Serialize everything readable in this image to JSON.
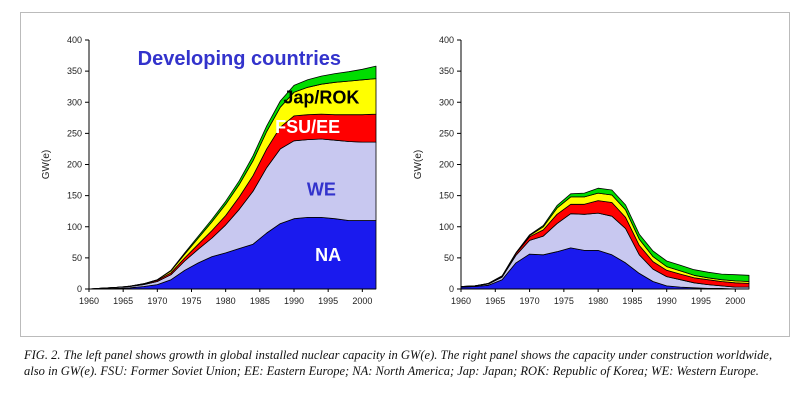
{
  "caption": "FIG. 2.  The left panel shows growth in global installed nuclear capacity in GW(e). The right panel shows the capacity under construction worldwide, also in GW(e). FSU: Former Soviet Union; EE: Eastern Europe; NA: North America; Jap: Japan; ROK: Republic of Korea; WE: Western Europe.",
  "chart_data": [
    {
      "type": "area",
      "stacked": true,
      "ylabel": "GW(e)",
      "xlim": [
        1960,
        2002
      ],
      "ylim": [
        0,
        400
      ],
      "xticks": [
        1960,
        1965,
        1970,
        1975,
        1980,
        1985,
        1990,
        1995,
        2000
      ],
      "yticks": [
        0,
        50,
        100,
        150,
        200,
        250,
        300,
        350,
        400
      ],
      "x": [
        1960,
        1962,
        1964,
        1966,
        1968,
        1970,
        1972,
        1974,
        1976,
        1978,
        1980,
        1982,
        1984,
        1986,
        1988,
        1990,
        1992,
        1994,
        1996,
        1998,
        2000,
        2002
      ],
      "series": [
        {
          "name": "NA",
          "color": "#1a1aee",
          "values": [
            0,
            0.5,
            1,
            2,
            4,
            7,
            15,
            30,
            42,
            52,
            58,
            65,
            72,
            90,
            105,
            113,
            115,
            115,
            113,
            110,
            110,
            110
          ]
        },
        {
          "name": "WE",
          "color": "#c8c8f0",
          "values": [
            0,
            1,
            1.5,
            2,
            3,
            5,
            8,
            15,
            22,
            30,
            45,
            63,
            85,
            105,
            120,
            125,
            125,
            126,
            126,
            127,
            126,
            126
          ]
        },
        {
          "name": "FSU/EE",
          "color": "#ff0000",
          "values": [
            0,
            0,
            0,
            0.5,
            1,
            2,
            3,
            5,
            8,
            12,
            15,
            20,
            25,
            30,
            35,
            40,
            40,
            40,
            41,
            43,
            44,
            45
          ]
        },
        {
          "name": "Jap/ROK",
          "color": "#ffff00",
          "values": [
            0,
            0,
            0,
            0,
            0.5,
            1,
            3,
            6,
            10,
            14,
            18,
            20,
            24,
            28,
            32,
            38,
            44,
            48,
            52,
            54,
            56,
            57
          ]
        },
        {
          "name": "Developing countries",
          "color": "#00dd00",
          "values": [
            0,
            0,
            0,
            0,
            0,
            0,
            1,
            2,
            3,
            4,
            5,
            6,
            8,
            9,
            10,
            11,
            12,
            13,
            14,
            15,
            17,
            20
          ]
        }
      ],
      "annotations": [
        {
          "text": "Developing countries",
          "color": "#3333cc"
        },
        {
          "text": "Jap/ROK",
          "color": "#000000"
        },
        {
          "text": "FSU/EE",
          "color": "#ffffff"
        },
        {
          "text": "WE",
          "color": "#3333cc"
        },
        {
          "text": "NA",
          "color": "#ffffff"
        }
      ]
    },
    {
      "type": "area",
      "stacked": true,
      "ylabel": "GW(e)",
      "xlim": [
        1960,
        2002
      ],
      "ylim": [
        0,
        400
      ],
      "xticks": [
        1960,
        1965,
        1970,
        1975,
        1980,
        1985,
        1990,
        1995,
        2000
      ],
      "yticks": [
        0,
        50,
        100,
        150,
        200,
        250,
        300,
        350,
        400
      ],
      "x": [
        1960,
        1962,
        1964,
        1966,
        1968,
        1970,
        1972,
        1974,
        1976,
        1978,
        1980,
        1982,
        1984,
        1986,
        1988,
        1990,
        1992,
        1994,
        1996,
        1998,
        2000,
        2002
      ],
      "series": [
        {
          "name": "NA",
          "color": "#1a1aee",
          "values": [
            3,
            4,
            6,
            15,
            42,
            56,
            55,
            60,
            66,
            62,
            62,
            55,
            42,
            25,
            12,
            5,
            3,
            2,
            1,
            1,
            0,
            0
          ]
        },
        {
          "name": "WE",
          "color": "#c8c8f0",
          "values": [
            1,
            1,
            2,
            4,
            12,
            22,
            30,
            45,
            55,
            58,
            60,
            62,
            55,
            30,
            20,
            15,
            12,
            8,
            6,
            4,
            3,
            3
          ]
        },
        {
          "name": "FSU/EE",
          "color": "#ff0000",
          "values": [
            0,
            0,
            0.5,
            1,
            3,
            6,
            10,
            15,
            15,
            16,
            20,
            22,
            18,
            15,
            12,
            10,
            9,
            8,
            8,
            7,
            7,
            6
          ]
        },
        {
          "name": "Jap/ROK",
          "color": "#ffff00",
          "values": [
            0,
            0,
            0.5,
            1,
            1,
            2,
            5,
            10,
            12,
            12,
            12,
            12,
            12,
            10,
            8,
            6,
            5,
            4,
            3,
            3,
            3,
            3
          ]
        },
        {
          "name": "Developing countries",
          "color": "#00dd00",
          "values": [
            0,
            0,
            0,
            0,
            0,
            1,
            2,
            4,
            5,
            6,
            8,
            8,
            8,
            8,
            9,
            9,
            9,
            9,
            9,
            9,
            10,
            10
          ]
        }
      ],
      "annotations": []
    }
  ]
}
